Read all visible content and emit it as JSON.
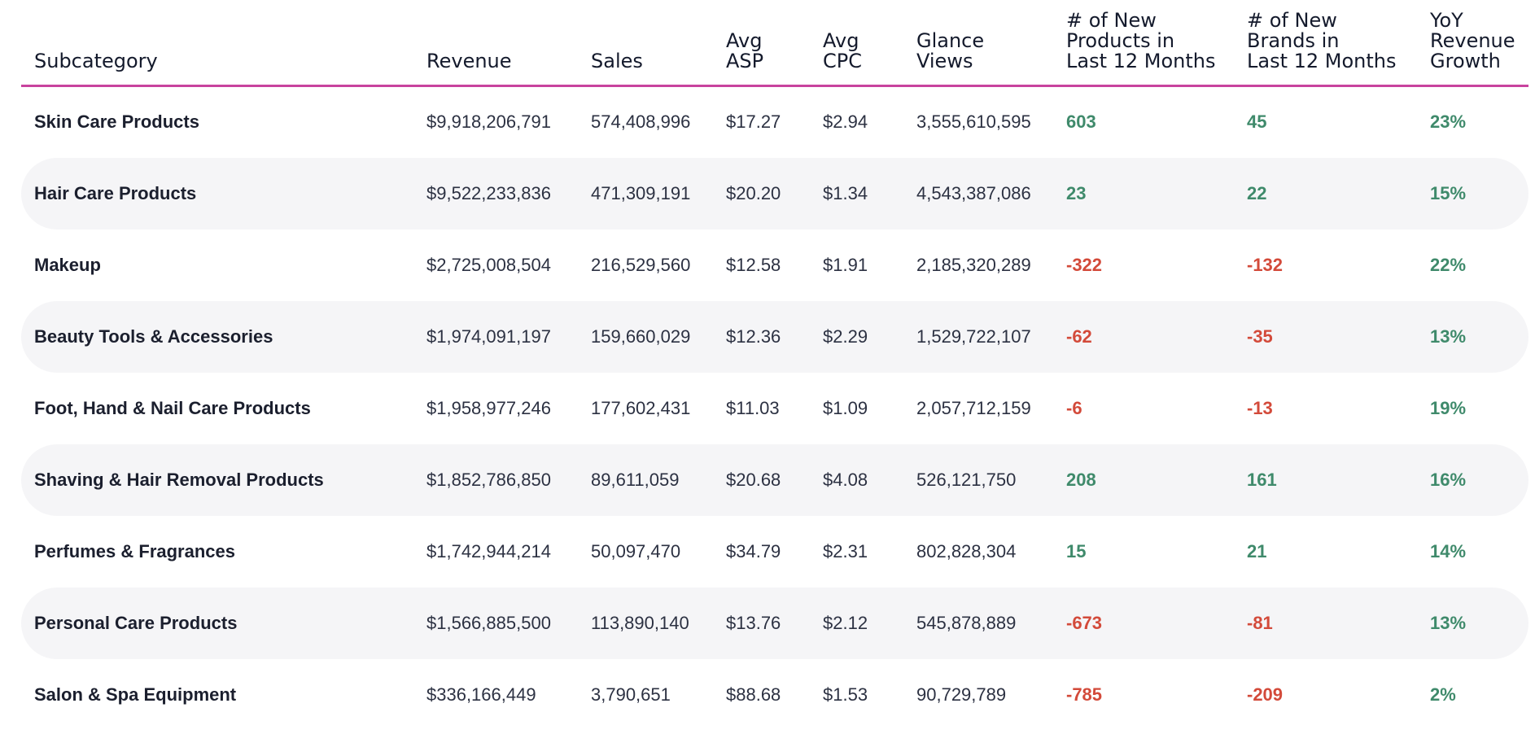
{
  "colors": {
    "accent_line": "#c8439e",
    "positive": "#3f8a6b",
    "negative": "#d34a3a",
    "row_alt": "#f5f5f7"
  },
  "chart_data": {
    "type": "table",
    "columns": [
      "Subcategory",
      "Revenue",
      "Sales",
      "Avg\nASP",
      "Avg\nCPC",
      "Glance\nViews",
      "# of New\nProducts in\nLast 12 Months",
      "# of New\nBrands in\nLast 12 Months",
      "YoY\nRevenue\nGrowth"
    ],
    "rows": [
      {
        "subcategory": "Skin Care Products",
        "revenue": "$9,918,206,791",
        "sales": "574,408,996",
        "avg_asp": "$17.27",
        "avg_cpc": "$2.94",
        "glance_views": "3,555,610,595",
        "new_products": "603",
        "new_brands": "45",
        "yoy_growth": "23%"
      },
      {
        "subcategory": "Hair Care Products",
        "revenue": "$9,522,233,836",
        "sales": "471,309,191",
        "avg_asp": "$20.20",
        "avg_cpc": "$1.34",
        "glance_views": "4,543,387,086",
        "new_products": "23",
        "new_brands": "22",
        "yoy_growth": "15%"
      },
      {
        "subcategory": "Makeup",
        "revenue": "$2,725,008,504",
        "sales": "216,529,560",
        "avg_asp": "$12.58",
        "avg_cpc": "$1.91",
        "glance_views": "2,185,320,289",
        "new_products": "-322",
        "new_brands": "-132",
        "yoy_growth": "22%"
      },
      {
        "subcategory": "Beauty Tools & Accessories",
        "revenue": "$1,974,091,197",
        "sales": "159,660,029",
        "avg_asp": "$12.36",
        "avg_cpc": "$2.29",
        "glance_views": "1,529,722,107",
        "new_products": "-62",
        "new_brands": "-35",
        "yoy_growth": "13%"
      },
      {
        "subcategory": "Foot, Hand & Nail Care Products",
        "revenue": "$1,958,977,246",
        "sales": "177,602,431",
        "avg_asp": "$11.03",
        "avg_cpc": "$1.09",
        "glance_views": "2,057,712,159",
        "new_products": "-6",
        "new_brands": "-13",
        "yoy_growth": "19%"
      },
      {
        "subcategory": "Shaving & Hair Removal Products",
        "revenue": "$1,852,786,850",
        "sales": "89,611,059",
        "avg_asp": "$20.68",
        "avg_cpc": "$4.08",
        "glance_views": "526,121,750",
        "new_products": "208",
        "new_brands": "161",
        "yoy_growth": "16%"
      },
      {
        "subcategory": "Perfumes & Fragrances",
        "revenue": "$1,742,944,214",
        "sales": "50,097,470",
        "avg_asp": "$34.79",
        "avg_cpc": "$2.31",
        "glance_views": "802,828,304",
        "new_products": "15",
        "new_brands": "21",
        "yoy_growth": "14%"
      },
      {
        "subcategory": "Personal Care Products",
        "revenue": "$1,566,885,500",
        "sales": "113,890,140",
        "avg_asp": "$13.76",
        "avg_cpc": "$2.12",
        "glance_views": "545,878,889",
        "new_products": "-673",
        "new_brands": "-81",
        "yoy_growth": "13%"
      },
      {
        "subcategory": "Salon & Spa Equipment",
        "revenue": "$336,166,449",
        "sales": "3,790,651",
        "avg_asp": "$88.68",
        "avg_cpc": "$1.53",
        "glance_views": "90,729,789",
        "new_products": "-785",
        "new_brands": "-209",
        "yoy_growth": "2%"
      }
    ]
  }
}
